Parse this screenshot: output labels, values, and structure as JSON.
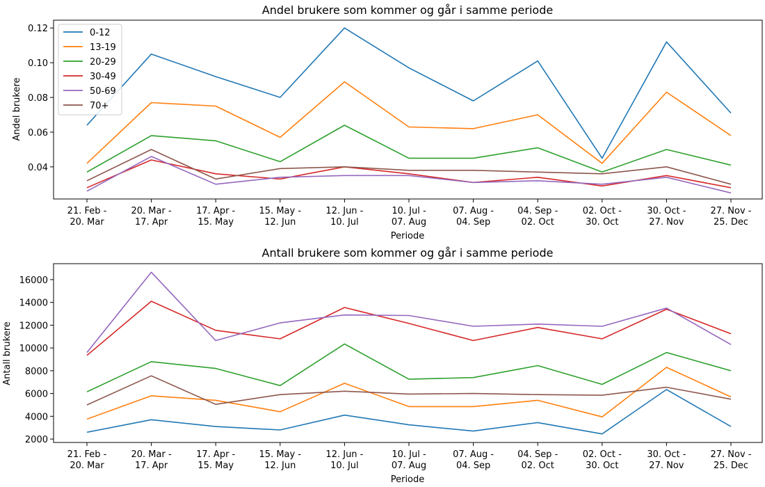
{
  "chart_data": [
    {
      "type": "line",
      "title": "Andel brukere som kommer og går i samme periode",
      "xlabel": "Periode",
      "ylabel": "Andel brukere",
      "categories": [
        [
          "21. Feb -",
          "20. Mar"
        ],
        [
          "20. Mar -",
          "17. Apr"
        ],
        [
          "17. Apr -",
          "15. May"
        ],
        [
          "15. May -",
          "12. Jun"
        ],
        [
          "12. Jun -",
          "10. Jul"
        ],
        [
          "10. Jul -",
          "07. Aug"
        ],
        [
          "07. Aug -",
          "04. Sep"
        ],
        [
          "04. Sep -",
          "02. Oct"
        ],
        [
          "02. Oct -",
          "30. Oct"
        ],
        [
          "30. Oct -",
          "27. Nov"
        ],
        [
          "27. Nov -",
          "25. Dec"
        ]
      ],
      "ylim": [
        0.0215,
        0.1245
      ],
      "yticks": [
        0.04,
        0.06,
        0.08,
        0.1,
        0.12
      ],
      "ytick_labels": [
        "0.04",
        "0.06",
        "0.08",
        "0.10",
        "0.12"
      ],
      "legend": "top-left",
      "grid": false,
      "series": [
        {
          "name": "0-12",
          "color": "#1f77b4",
          "values": [
            0.064,
            0.105,
            0.092,
            0.08,
            0.12,
            0.097,
            0.078,
            0.101,
            0.045,
            0.112,
            0.071
          ]
        },
        {
          "name": "13-19",
          "color": "#ff7f0e",
          "values": [
            0.042,
            0.077,
            0.075,
            0.057,
            0.089,
            0.063,
            0.062,
            0.07,
            0.042,
            0.083,
            0.058
          ]
        },
        {
          "name": "20-29",
          "color": "#2ca02c",
          "values": [
            0.037,
            0.058,
            0.055,
            0.043,
            0.064,
            0.045,
            0.045,
            0.051,
            0.037,
            0.05,
            0.041
          ]
        },
        {
          "name": "30-49",
          "color": "#d62728",
          "values": [
            0.028,
            0.044,
            0.036,
            0.033,
            0.04,
            0.036,
            0.031,
            0.034,
            0.029,
            0.035,
            0.028
          ]
        },
        {
          "name": "50-69",
          "color": "#9467bd",
          "values": [
            0.026,
            0.046,
            0.03,
            0.034,
            0.035,
            0.035,
            0.031,
            0.032,
            0.03,
            0.034,
            0.025
          ]
        },
        {
          "name": "70+",
          "color": "#8c564b",
          "values": [
            0.032,
            0.05,
            0.033,
            0.039,
            0.04,
            0.038,
            0.038,
            0.037,
            0.036,
            0.04,
            0.03
          ]
        }
      ]
    },
    {
      "type": "line",
      "title": "Antall brukere som kommer og går i samme periode",
      "xlabel": "Periode",
      "ylabel": "Antall brukere",
      "categories": [
        [
          "21. Feb -",
          "20. Mar"
        ],
        [
          "20. Mar -",
          "17. Apr"
        ],
        [
          "17. Apr -",
          "15. May"
        ],
        [
          "15. May -",
          "12. Jun"
        ],
        [
          "12. Jun -",
          "10. Jul"
        ],
        [
          "10. Jul -",
          "07. Aug"
        ],
        [
          "07. Aug -",
          "04. Sep"
        ],
        [
          "04. Sep -",
          "02. Oct"
        ],
        [
          "02. Oct -",
          "30. Oct"
        ],
        [
          "30. Oct -",
          "27. Nov"
        ],
        [
          "27. Nov -",
          "25. Dec"
        ]
      ],
      "ylim": [
        1700,
        17400
      ],
      "yticks": [
        2000,
        4000,
        6000,
        8000,
        10000,
        12000,
        14000,
        16000
      ],
      "ytick_labels": [
        "2000",
        "4000",
        "6000",
        "8000",
        "10000",
        "12000",
        "14000",
        "16000"
      ],
      "grid": false,
      "series": [
        {
          "name": "0-12",
          "color": "#1f77b4",
          "values": [
            2600,
            3700,
            3100,
            2800,
            4100,
            3250,
            2700,
            3450,
            2450,
            6350,
            3100
          ]
        },
        {
          "name": "13-19",
          "color": "#ff7f0e",
          "values": [
            3750,
            5800,
            5400,
            4400,
            6900,
            4850,
            4850,
            5400,
            3950,
            8300,
            5700
          ]
        },
        {
          "name": "20-29",
          "color": "#2ca02c",
          "values": [
            6150,
            8800,
            8200,
            6700,
            10350,
            7250,
            7400,
            8450,
            6800,
            9600,
            8000
          ]
        },
        {
          "name": "30-49",
          "color": "#d62728",
          "values": [
            9350,
            14100,
            11550,
            10800,
            13550,
            12150,
            10650,
            11800,
            10800,
            13400,
            11250
          ]
        },
        {
          "name": "50-69",
          "color": "#9467bd",
          "values": [
            9600,
            16650,
            10650,
            12200,
            12900,
            12850,
            11900,
            12100,
            11900,
            13500,
            10300
          ]
        },
        {
          "name": "70+",
          "color": "#8c564b",
          "values": [
            5000,
            7550,
            5050,
            5900,
            6200,
            5950,
            6000,
            5900,
            5850,
            6550,
            5500
          ]
        }
      ]
    }
  ]
}
